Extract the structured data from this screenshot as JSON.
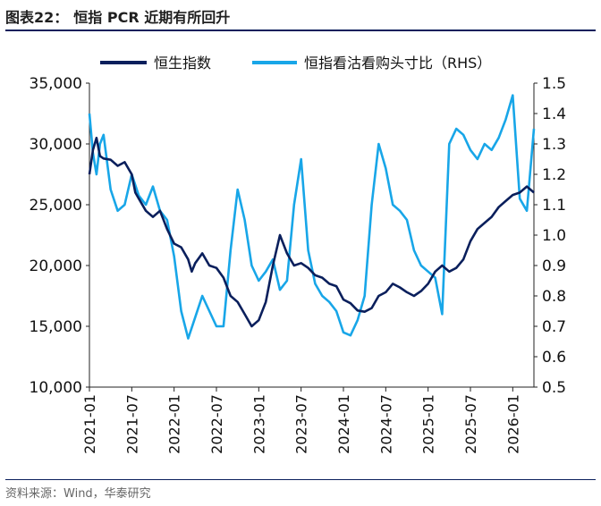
{
  "header": {
    "figure_no": "图表22：",
    "title": "恒指 PCR 近期有所回升"
  },
  "footer": {
    "source_label": "资料来源：",
    "source_text": "Wind，华泰研究"
  },
  "colors": {
    "index": "#0a1f5c",
    "pcr": "#18a6e8"
  },
  "chart_data": {
    "type": "line",
    "legend_position": "top",
    "x_ticks": [
      "2021-01",
      "2021-07",
      "2022-01",
      "2022-07",
      "2023-01",
      "2023-07",
      "2024-01",
      "2024-07",
      "2025-01",
      "2025-07",
      "2026-01"
    ],
    "x_range": [
      0,
      63
    ],
    "left_axis": {
      "range": [
        10000,
        35000
      ],
      "ticks": [
        "10,000",
        "15,000",
        "20,000",
        "25,000",
        "30,000",
        "35,000"
      ]
    },
    "right_axis": {
      "range": [
        0.5,
        1.5
      ],
      "ticks": [
        "0.5",
        "0.6",
        "0.7",
        "0.8",
        "0.9",
        "1.0",
        "1.1",
        "1.2",
        "1.3",
        "1.4",
        "1.5"
      ]
    },
    "series": [
      {
        "name": "恒生指数",
        "axis": "left",
        "x": [
          0,
          0.5,
          1,
          1.5,
          2,
          3,
          4,
          5,
          6,
          6.5,
          7,
          8,
          9,
          10,
          11,
          12,
          13,
          14,
          14.5,
          15,
          16,
          17,
          18,
          19,
          20,
          21,
          22,
          23,
          24,
          25,
          26,
          27,
          28,
          29,
          30,
          31,
          32,
          33,
          34,
          35,
          36,
          37,
          38,
          39,
          40,
          41,
          42,
          43,
          44,
          45,
          46,
          47,
          48,
          49,
          50,
          51,
          52,
          53,
          54,
          55,
          56,
          57,
          58,
          59,
          60,
          61,
          62,
          63
        ],
        "values": [
          27500,
          29500,
          30500,
          29000,
          28800,
          28700,
          28200,
          28500,
          27500,
          26000,
          25500,
          24500,
          24000,
          24500,
          23000,
          21800,
          21500,
          20500,
          19500,
          20200,
          21000,
          20000,
          19800,
          19000,
          17500,
          17000,
          16000,
          15000,
          15500,
          17000,
          20000,
          22500,
          21000,
          20000,
          20200,
          19800,
          19200,
          19000,
          18500,
          18300,
          17200,
          16900,
          16300,
          16200,
          16500,
          17500,
          17800,
          18500,
          18200,
          17800,
          17500,
          17900,
          18500,
          19500,
          20000,
          19500,
          19800,
          20500,
          22000,
          23000,
          23500,
          24000,
          24800,
          25300,
          25800,
          26000,
          26500,
          26000
        ]
      },
      {
        "name": "恒指看沽看购头寸比（RHS）",
        "axis": "right",
        "x": [
          0,
          0.5,
          1,
          1.5,
          2,
          3,
          4,
          5,
          6,
          7,
          8,
          9,
          10,
          11,
          12,
          13,
          14,
          15,
          16,
          17,
          18,
          19,
          20,
          21,
          22,
          23,
          24,
          25,
          26,
          27,
          28,
          29,
          30,
          31,
          32,
          33,
          34,
          35,
          36,
          37,
          38,
          39,
          40,
          41,
          42,
          43,
          44,
          45,
          46,
          47,
          48,
          49,
          50,
          51,
          52,
          53,
          54,
          55,
          56,
          57,
          58,
          59,
          60,
          61,
          62,
          63
        ],
        "values": [
          1.4,
          1.27,
          1.2,
          1.3,
          1.33,
          1.15,
          1.08,
          1.1,
          1.2,
          1.13,
          1.1,
          1.16,
          1.08,
          1.05,
          0.93,
          0.75,
          0.66,
          0.73,
          0.8,
          0.75,
          0.7,
          0.7,
          0.95,
          1.15,
          1.05,
          0.9,
          0.85,
          0.88,
          0.92,
          0.82,
          0.85,
          1.1,
          1.25,
          0.95,
          0.84,
          0.8,
          0.78,
          0.75,
          0.68,
          0.67,
          0.72,
          0.8,
          1.1,
          1.3,
          1.22,
          1.1,
          1.08,
          1.05,
          0.95,
          0.9,
          0.88,
          0.86,
          0.74,
          1.3,
          1.35,
          1.33,
          1.28,
          1.25,
          1.3,
          1.28,
          1.32,
          1.38,
          1.46,
          1.12,
          1.08,
          1.35
        ]
      }
    ]
  }
}
